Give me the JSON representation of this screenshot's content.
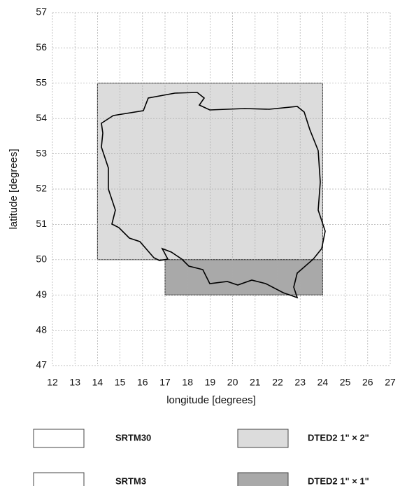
{
  "chart_data": {
    "type": "coverage",
    "xlabel": "longitude [degrees]",
    "ylabel": "latitude [degrees]",
    "xlim": [
      12,
      27
    ],
    "ylim": [
      47,
      57
    ],
    "xticks": [
      12,
      13,
      14,
      15,
      16,
      17,
      18,
      19,
      20,
      21,
      22,
      23,
      24,
      25,
      26,
      27
    ],
    "yticks": [
      47,
      48,
      49,
      50,
      51,
      52,
      53,
      54,
      55,
      56,
      57
    ],
    "grid": true,
    "series": [
      {
        "name": "SRTM30",
        "color": "#ffffff"
      },
      {
        "name": "DTED2 1\" × 2\"",
        "color": "#dcdcdc",
        "x": [
          14,
          24
        ],
        "y": [
          50,
          55
        ]
      },
      {
        "name": "SRTM3",
        "color": "#ffffff"
      },
      {
        "name": "DTED2 1\" × 1\"",
        "color": "#a9a9a9",
        "x": [
          17,
          24
        ],
        "y": [
          49,
          50
        ]
      }
    ]
  }
}
